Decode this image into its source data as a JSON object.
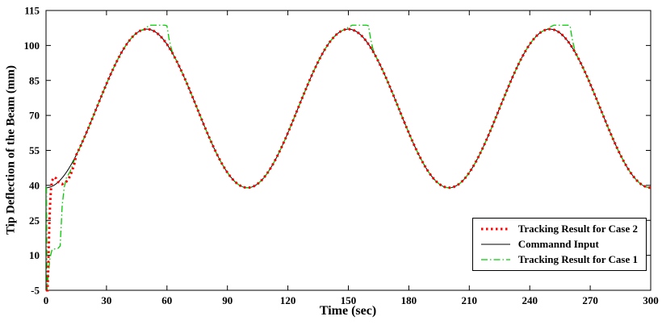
{
  "figure": {
    "xlabel": "Time (sec)",
    "ylabel": "Tip Deflection of the Beam (mm)"
  },
  "chart_data": {
    "type": "line",
    "title": "",
    "xlabel": "Time (sec)",
    "ylabel": "Tip Deflection of the Beam (mm)",
    "xlim": [
      0,
      300
    ],
    "ylim": [
      -5,
      115
    ],
    "xticks": [
      0,
      30,
      60,
      90,
      120,
      150,
      180,
      210,
      240,
      270,
      300
    ],
    "yticks": [
      -5,
      10,
      25,
      40,
      55,
      70,
      85,
      100,
      115
    ],
    "grid": false,
    "legend_position": "lower right",
    "series": [
      {
        "name": "Tracking Result for Case 2",
        "color": "#ff0000",
        "line_style": "dotted",
        "line_width": 3,
        "model": {
          "kind": "sinusoid",
          "mean": 73,
          "amplitude": 34,
          "period_sec": 100,
          "form": "y = mean - amplitude*cos(2*pi*t/period)"
        },
        "overrides": [
          [
            [
              0,
              -5
            ],
            [
              0.8,
              -5
            ],
            [
              1.2,
              8
            ],
            [
              1.8,
              28
            ],
            [
              2.4,
              38
            ],
            [
              3,
              42
            ],
            [
              4,
              43.5
            ],
            [
              5,
              43
            ],
            [
              6,
              41.5
            ],
            [
              8,
              40.5
            ],
            [
              10,
              41.5
            ],
            [
              12,
              44
            ],
            [
              14,
              49
            ],
            [
              15,
              53
            ]
          ]
        ]
      },
      {
        "name": "Commannd Input",
        "color": "#000000",
        "line_style": "solid",
        "line_width": 1,
        "model": {
          "kind": "sinusoid",
          "mean": 73,
          "amplitude": 34,
          "period_sec": 100,
          "form": "y = mean - amplitude*cos(2*pi*t/period)"
        },
        "overrides": []
      },
      {
        "name": "Tracking Result for Case 1",
        "color": "#00cc00",
        "line_style": "dashdot",
        "line_width": 1.3,
        "model": {
          "kind": "sinusoid",
          "mean": 73,
          "amplitude": 34,
          "period_sec": 100,
          "form": "y = mean - amplitude*cos(2*pi*t/period)"
        },
        "overrides": [
          [
            [
              0.5,
              -5
            ],
            [
              1,
              1
            ],
            [
              2,
              9
            ],
            [
              3,
              12.5
            ],
            [
              6,
              13
            ],
            [
              7,
              14
            ],
            [
              7.5,
              22
            ],
            [
              8,
              31
            ],
            [
              9,
              39
            ],
            [
              10,
              43
            ],
            [
              12,
              46
            ],
            [
              15,
              53
            ]
          ],
          [
            [
              48,
              106.5
            ],
            [
              50,
              107.9
            ],
            [
              52,
              108.7
            ],
            [
              59,
              108.7
            ],
            [
              60,
              108.4
            ],
            [
              61,
              103
            ],
            [
              62,
              99.2
            ],
            [
              63,
              96.3
            ]
          ],
          [
            [
              148,
              106.5
            ],
            [
              150,
              107.9
            ],
            [
              152,
              108.7
            ],
            [
              159,
              108.7
            ],
            [
              160,
              108.4
            ],
            [
              161,
              103
            ],
            [
              162,
              99.2
            ],
            [
              163,
              96.3
            ]
          ],
          [
            [
              248,
              106.5
            ],
            [
              250,
              107.9
            ],
            [
              252,
              108.7
            ],
            [
              259,
              108.7
            ],
            [
              260,
              108.4
            ],
            [
              261,
              103
            ],
            [
              262,
              99.2
            ],
            [
              263,
              96.3
            ]
          ]
        ]
      }
    ]
  }
}
